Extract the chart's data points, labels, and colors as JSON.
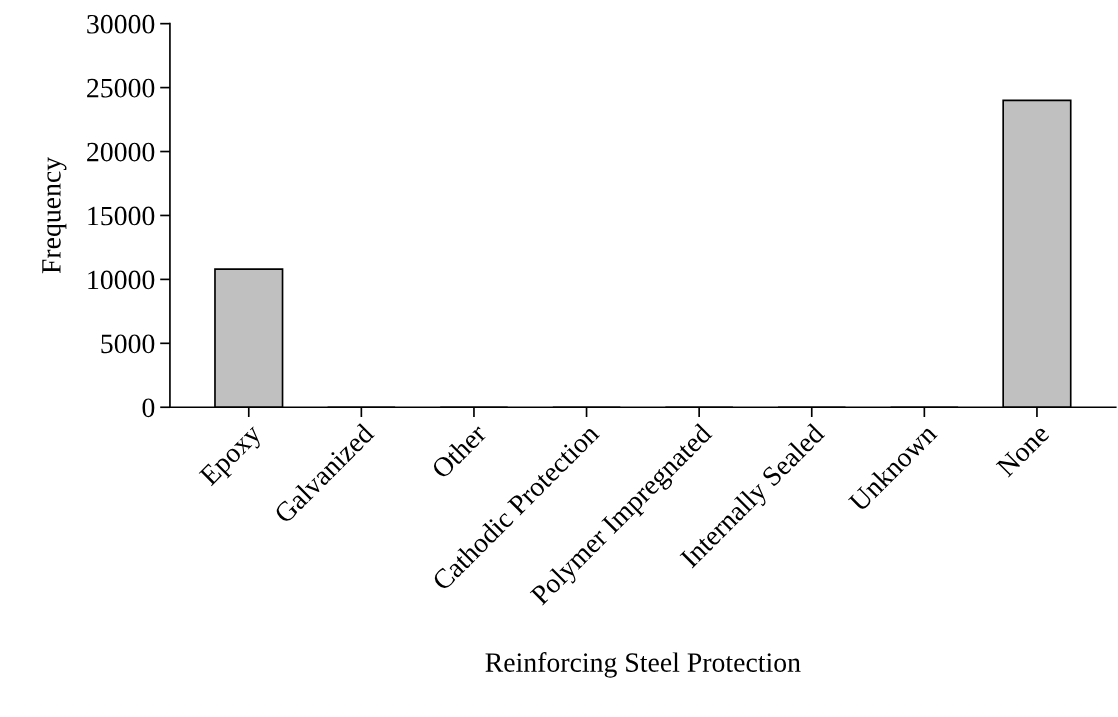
{
  "chart_data": {
    "type": "bar",
    "categories": [
      "Epoxy",
      "Galvanized",
      "Other",
      "Cathodic Protection",
      "Polymer Impregnated",
      "Internally Sealed",
      "Unknown",
      "None"
    ],
    "values": [
      10800,
      0,
      0,
      0,
      0,
      0,
      0,
      24000
    ],
    "color": "#c0c0c0",
    "xlabel": "Reinforcing Steel Protection",
    "ylabel": "Frequency",
    "ylim": [
      0,
      30000
    ],
    "yticks": [
      0,
      5000,
      10000,
      15000,
      20000,
      25000,
      30000
    ],
    "grid": false,
    "legend": false
  }
}
